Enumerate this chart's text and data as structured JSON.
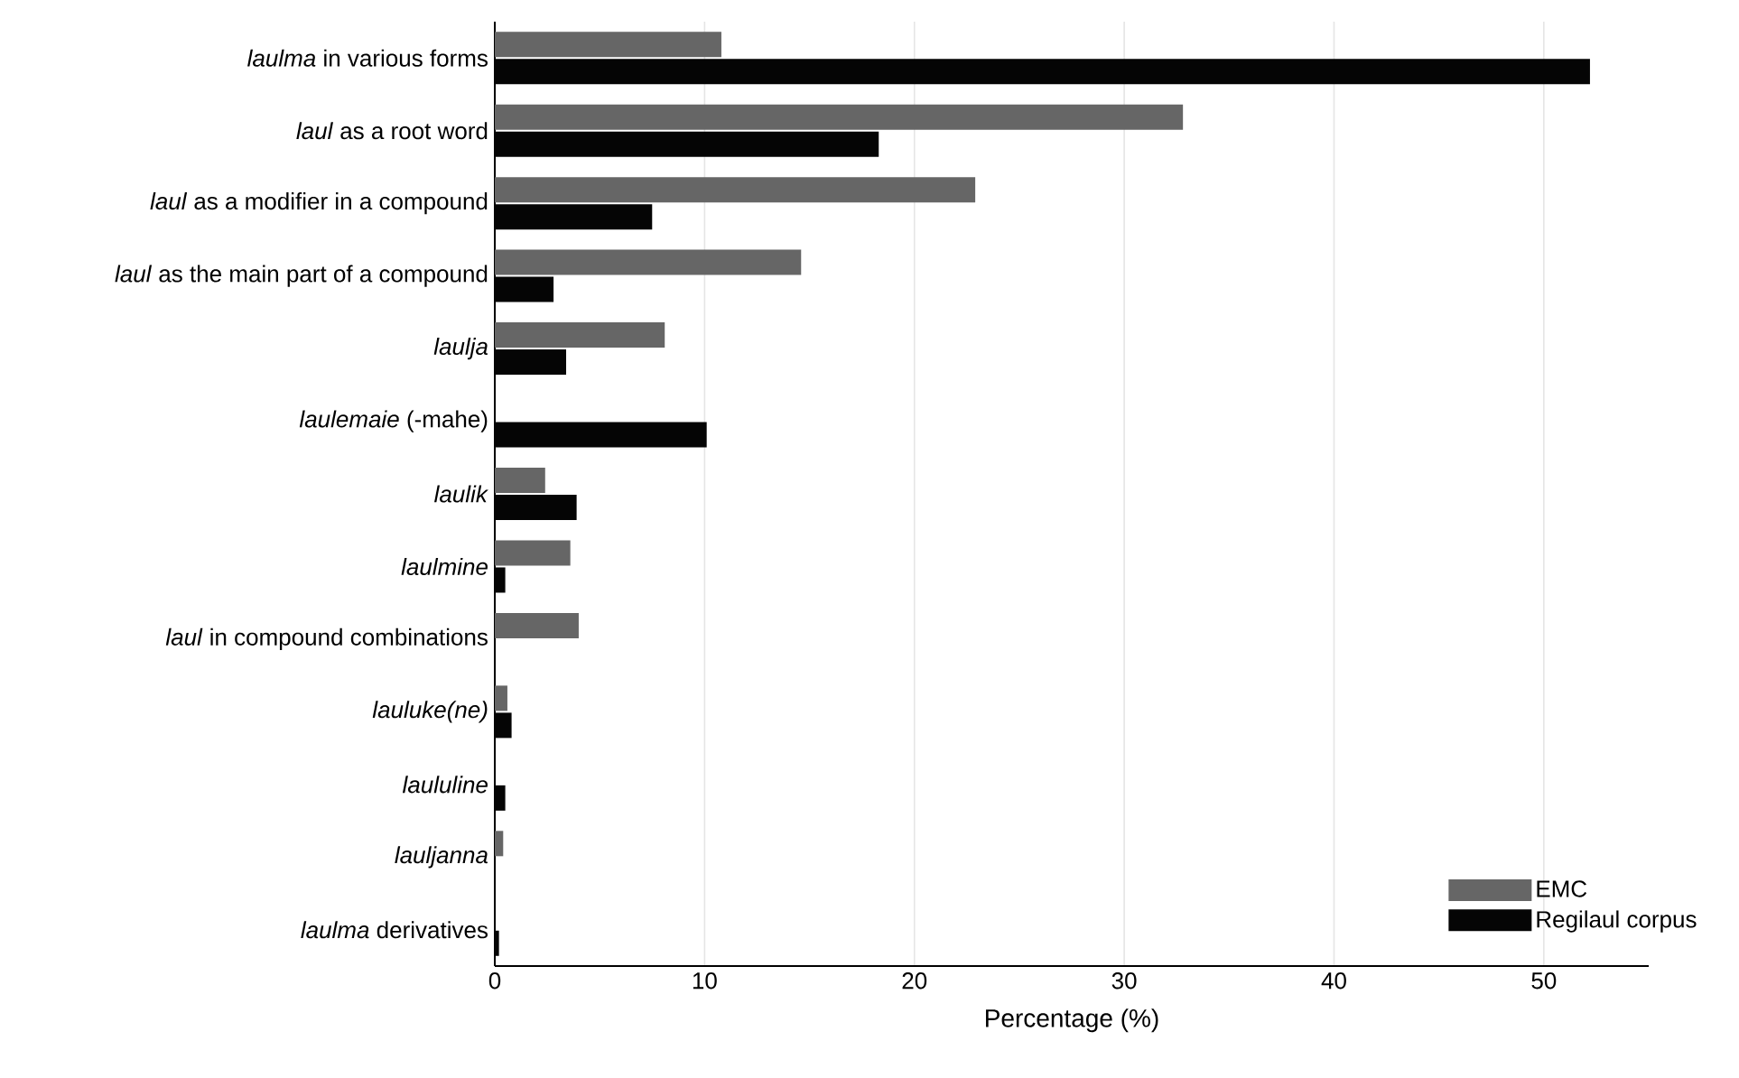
{
  "chart_data": {
    "type": "bar",
    "orientation": "horizontal",
    "categories": [
      "*laulma* in various forms",
      "*laul* as a root word",
      "*laul* as a modifier in a compound",
      "*laul* as the main part of a compound",
      "*laulja*",
      "*laulemaie* (-mahe)",
      "*laulik*",
      "*laulmine*",
      "*laul* in compound combinations",
      "*lauluke(ne)*",
      "*laululine*",
      "*lauljanna*",
      "*laulma* derivatives"
    ],
    "series": [
      {
        "name": "EMC",
        "color": "#666666",
        "values": [
          10.8,
          32.8,
          22.9,
          14.6,
          8.1,
          null,
          2.4,
          3.6,
          4.0,
          0.6,
          null,
          0.4,
          null
        ]
      },
      {
        "name": "Regilaul corpus",
        "color": "#050505",
        "values": [
          52.2,
          18.3,
          7.5,
          2.8,
          3.4,
          10.1,
          3.9,
          0.5,
          null,
          0.8,
          0.5,
          null,
          0.2
        ]
      }
    ],
    "xlabel": "Percentage (%)",
    "xlim": [
      0,
      55
    ],
    "xticks": [
      0,
      10,
      20,
      30,
      40,
      50
    ],
    "grid": "x",
    "legend": "bottom right"
  }
}
